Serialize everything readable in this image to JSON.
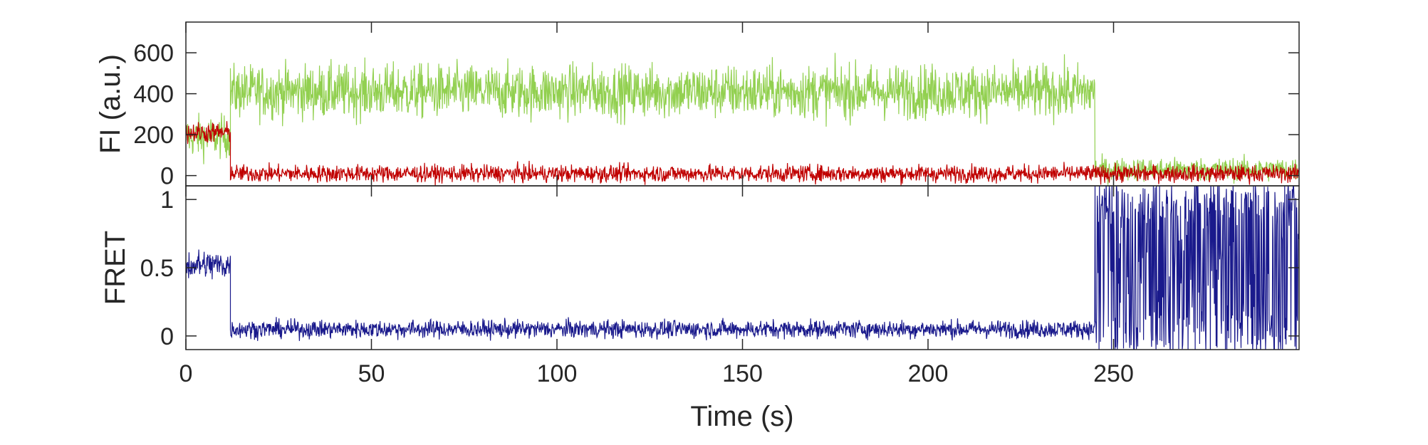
{
  "chart_data": [
    {
      "type": "line",
      "panel": "top",
      "title": "",
      "xlabel": "",
      "ylabel": "FI (a.u.)",
      "xlim": [
        0,
        300
      ],
      "ylim": [
        -50,
        750
      ],
      "yticks": [
        0,
        200,
        400,
        600
      ],
      "ytick_labels": [
        "0",
        "200",
        "400",
        "600"
      ],
      "grid": false,
      "legend": "none",
      "series": [
        {
          "color": "#92d050",
          "segments": [
            {
              "x_start": 0,
              "x_end": 12,
              "mean": 190,
              "noise": 110
            },
            {
              "x_start": 12,
              "x_end": 245,
              "mean": 410,
              "noise": 140
            },
            {
              "x_start": 245,
              "x_end": 300,
              "mean": 30,
              "noise": 60
            }
          ]
        },
        {
          "color": "#c00000",
          "segments": [
            {
              "x_start": 0,
              "x_end": 12,
              "mean": 210,
              "noise": 55
            },
            {
              "x_start": 12,
              "x_end": 245,
              "mean": 10,
              "noise": 45
            },
            {
              "x_start": 245,
              "x_end": 300,
              "mean": 10,
              "noise": 45
            }
          ]
        }
      ]
    },
    {
      "type": "line",
      "panel": "bottom",
      "title": "",
      "xlabel": "Time (s)",
      "ylabel": "FRET",
      "xlim": [
        0,
        300
      ],
      "ylim": [
        -0.1,
        1.1
      ],
      "xticks": [
        0,
        50,
        100,
        150,
        200,
        250
      ],
      "xtick_labels": [
        "0",
        "50",
        "100",
        "150",
        "200",
        "250"
      ],
      "yticks": [
        0,
        0.5,
        1
      ],
      "ytick_labels": [
        "0",
        "0.5",
        "1"
      ],
      "grid": false,
      "legend": "none",
      "series": [
        {
          "color": "#1a1a8c",
          "segments": [
            {
              "x_start": 0,
              "x_end": 12,
              "mean": 0.52,
              "noise": 0.12
            },
            {
              "x_start": 12,
              "x_end": 245,
              "mean": 0.05,
              "noise": 0.07
            },
            {
              "x_start": 245,
              "x_end": 300,
              "mean": 0.5,
              "noise": 0.7
            }
          ]
        }
      ]
    }
  ]
}
